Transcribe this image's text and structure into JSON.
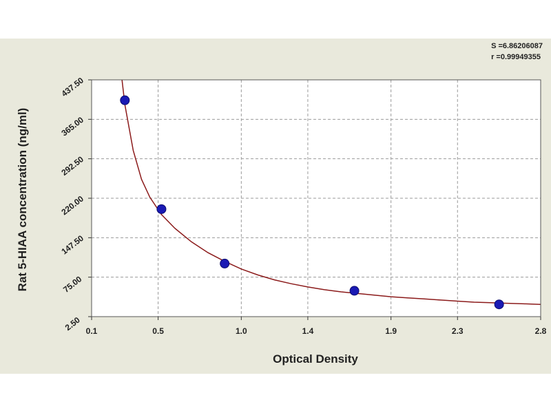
{
  "stats": {
    "s_label": "S =6.86206087",
    "r_label": "r =0.99949355"
  },
  "colors": {
    "background": "#e9e9dc",
    "plot_area": "#ffffff",
    "curve": "#8b1a1a",
    "points": "#1a1ab4",
    "grid": "#9a9a9a"
  },
  "chart_data": {
    "type": "scatter",
    "title": "",
    "xlabel": "Optical Density",
    "ylabel": "Rat 5-HIAA concentration (ng/ml)",
    "xlim": [
      0.1,
      2.8
    ],
    "ylim": [
      2.5,
      437.5
    ],
    "x_ticks": [
      0.1,
      0.5,
      1.0,
      1.4,
      1.9,
      2.3,
      2.8
    ],
    "x_tick_labels": [
      "0.1",
      "0.5",
      "1.0",
      "1.4",
      "1.9",
      "2.3",
      "2.8"
    ],
    "y_ticks": [
      2.5,
      75,
      147.5,
      220,
      292.5,
      365,
      437.5
    ],
    "y_tick_labels": [
      "2.50",
      "75.00",
      "147.50",
      "220.00",
      "292.50",
      "365.00",
      "437.50"
    ],
    "grid": true,
    "series": [
      {
        "type": "scatter",
        "x": [
          0.3,
          0.52,
          0.9,
          1.68,
          2.55
        ],
        "y": [
          400,
          200,
          100,
          50,
          25
        ]
      },
      {
        "type": "line",
        "x": [
          0.283,
          0.3,
          0.35,
          0.4,
          0.45,
          0.52,
          0.6,
          0.7,
          0.8,
          0.9,
          1.0,
          1.1,
          1.2,
          1.3,
          1.4,
          1.5,
          1.6,
          1.7,
          1.8,
          1.9,
          2.0,
          2.1,
          2.2,
          2.3,
          2.4,
          2.5,
          2.6,
          2.7,
          2.8
        ],
        "y": [
          437,
          392,
          308,
          255,
          222,
          190,
          165,
          140,
          120,
          104,
          90,
          79,
          70,
          63,
          57,
          52,
          48,
          45,
          42,
          39,
          37,
          35,
          33,
          31,
          29,
          28,
          27,
          26,
          25
        ]
      }
    ]
  }
}
